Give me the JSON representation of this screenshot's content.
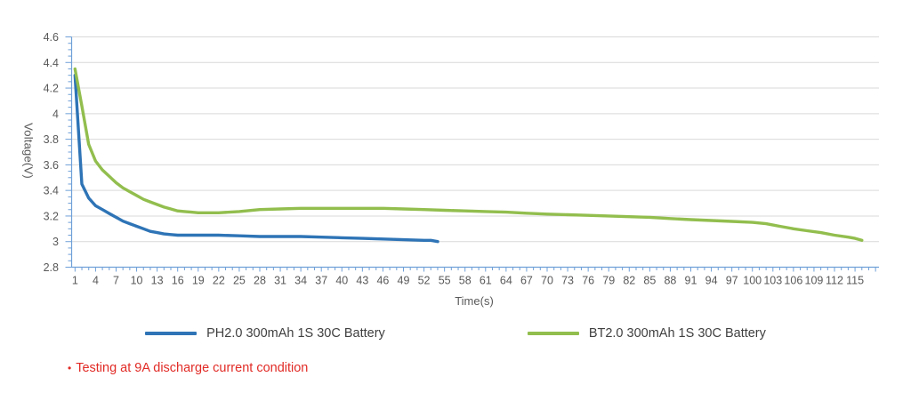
{
  "chart_data": {
    "type": "line",
    "title": "",
    "xlabel": "Time(s)",
    "ylabel": "Voltage(V)",
    "xlim": [
      0.5,
      118.5
    ],
    "ylim": [
      2.8,
      4.6
    ],
    "grid": "horizontal",
    "legend_position": "bottom",
    "y_tick_labels": [
      "2.8",
      "3",
      "3.2",
      "3.4",
      "3.6",
      "3.8",
      "4",
      "4.2",
      "4.4",
      "4.6"
    ],
    "y_tick_step": 0.2,
    "y_minor_tick_step": 0.05,
    "x_tick_labels": [
      1,
      4,
      7,
      10,
      13,
      16,
      19,
      22,
      25,
      28,
      31,
      34,
      37,
      40,
      43,
      46,
      49,
      52,
      55,
      58,
      61,
      64,
      67,
      70,
      73,
      76,
      79,
      82,
      85,
      88,
      91,
      94,
      97,
      100,
      103,
      106,
      109,
      112,
      115
    ],
    "x_minor_tick_step": 1,
    "series": [
      {
        "name": "PH2.0 300mAh 1S 30C Battery",
        "color": "#2E74B6",
        "points": [
          [
            1,
            4.3
          ],
          [
            2,
            3.45
          ],
          [
            3,
            3.34
          ],
          [
            4,
            3.28
          ],
          [
            5,
            3.25
          ],
          [
            6,
            3.22
          ],
          [
            7,
            3.19
          ],
          [
            8,
            3.16
          ],
          [
            9,
            3.14
          ],
          [
            10,
            3.12
          ],
          [
            11,
            3.1
          ],
          [
            12,
            3.08
          ],
          [
            13,
            3.07
          ],
          [
            14,
            3.06
          ],
          [
            15,
            3.055
          ],
          [
            16,
            3.05
          ],
          [
            19,
            3.05
          ],
          [
            22,
            3.05
          ],
          [
            25,
            3.045
          ],
          [
            28,
            3.04
          ],
          [
            31,
            3.04
          ],
          [
            34,
            3.04
          ],
          [
            37,
            3.035
          ],
          [
            40,
            3.03
          ],
          [
            43,
            3.025
          ],
          [
            46,
            3.02
          ],
          [
            49,
            3.015
          ],
          [
            52,
            3.01
          ],
          [
            53,
            3.01
          ],
          [
            54,
            3.0
          ]
        ]
      },
      {
        "name": "BT2.0 300mAh 1S 30C Battery",
        "color": "#92BE4E",
        "points": [
          [
            1,
            4.35
          ],
          [
            2,
            4.06
          ],
          [
            3,
            3.76
          ],
          [
            4,
            3.63
          ],
          [
            5,
            3.56
          ],
          [
            6,
            3.51
          ],
          [
            7,
            3.46
          ],
          [
            8,
            3.42
          ],
          [
            9,
            3.39
          ],
          [
            10,
            3.36
          ],
          [
            11,
            3.33
          ],
          [
            12,
            3.31
          ],
          [
            13,
            3.29
          ],
          [
            14,
            3.27
          ],
          [
            15,
            3.255
          ],
          [
            16,
            3.24
          ],
          [
            17,
            3.235
          ],
          [
            18,
            3.23
          ],
          [
            19,
            3.225
          ],
          [
            22,
            3.225
          ],
          [
            25,
            3.235
          ],
          [
            28,
            3.25
          ],
          [
            31,
            3.255
          ],
          [
            34,
            3.26
          ],
          [
            37,
            3.26
          ],
          [
            40,
            3.26
          ],
          [
            43,
            3.26
          ],
          [
            46,
            3.26
          ],
          [
            49,
            3.255
          ],
          [
            52,
            3.25
          ],
          [
            55,
            3.245
          ],
          [
            58,
            3.24
          ],
          [
            61,
            3.235
          ],
          [
            64,
            3.23
          ],
          [
            67,
            3.222
          ],
          [
            70,
            3.215
          ],
          [
            73,
            3.21
          ],
          [
            76,
            3.205
          ],
          [
            79,
            3.2
          ],
          [
            82,
            3.195
          ],
          [
            85,
            3.19
          ],
          [
            88,
            3.18
          ],
          [
            91,
            3.172
          ],
          [
            94,
            3.165
          ],
          [
            97,
            3.158
          ],
          [
            100,
            3.15
          ],
          [
            102,
            3.14
          ],
          [
            104,
            3.12
          ],
          [
            106,
            3.1
          ],
          [
            108,
            3.085
          ],
          [
            110,
            3.07
          ],
          [
            112,
            3.05
          ],
          [
            114,
            3.035
          ],
          [
            115,
            3.025
          ],
          [
            116,
            3.01
          ]
        ]
      }
    ]
  },
  "colors": {
    "grid": "#D9D9D9",
    "axis": "#6FA0D8",
    "tick_label": "#595959",
    "legend_text": "#3F3F3F"
  },
  "note": {
    "bullet": "•",
    "text": "Testing at 9A discharge current condition",
    "color": "#E12B26"
  }
}
